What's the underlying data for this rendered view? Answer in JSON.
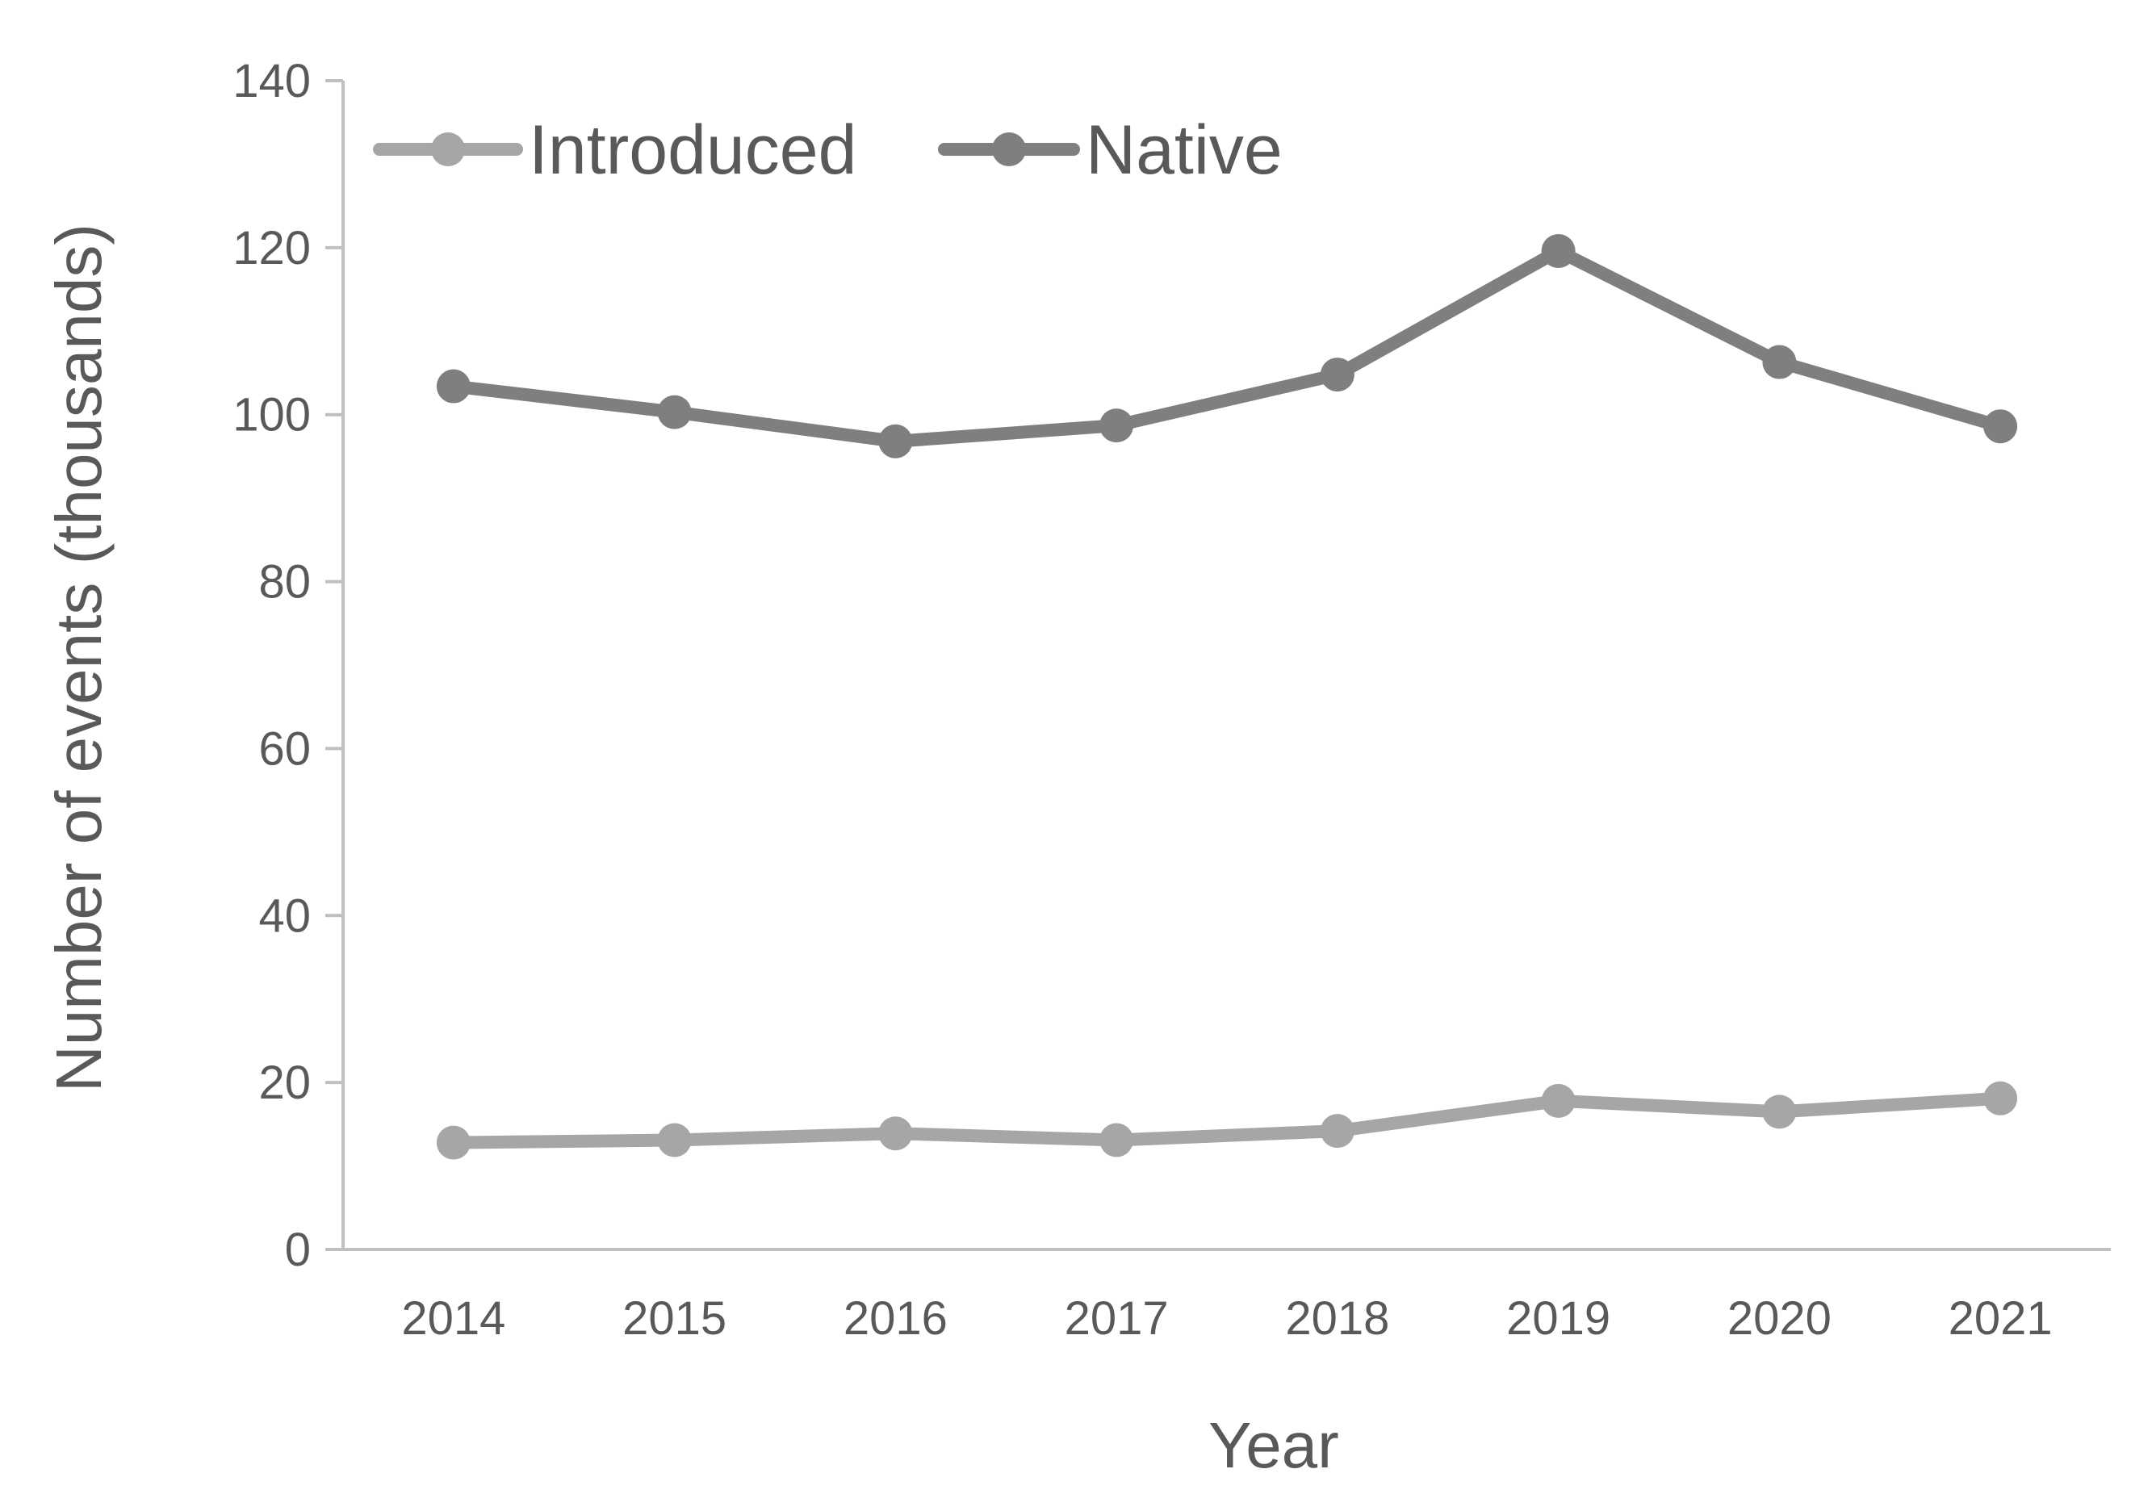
{
  "chart_data": {
    "type": "line",
    "categories": [
      "2014",
      "2015",
      "2016",
      "2017",
      "2018",
      "2019",
      "2020",
      "2021"
    ],
    "series": [
      {
        "name": "Introduced",
        "values": [
          12.8,
          13.1,
          13.9,
          13.1,
          14.2,
          17.8,
          16.5,
          18.1
        ],
        "color": "#a6a6a6"
      },
      {
        "name": "Native",
        "values": [
          103.4,
          100.3,
          96.8,
          98.7,
          104.8,
          119.6,
          106.3,
          98.6
        ],
        "color": "#7f7f7f"
      }
    ],
    "title": "",
    "xlabel": "Year",
    "ylabel": "Number of events (thousands)",
    "ylim": [
      0,
      140
    ],
    "yticks": [
      "0",
      "20",
      "40",
      "60",
      "80",
      "100",
      "120",
      "140"
    ],
    "grid": false,
    "legend_position": "top-left"
  }
}
